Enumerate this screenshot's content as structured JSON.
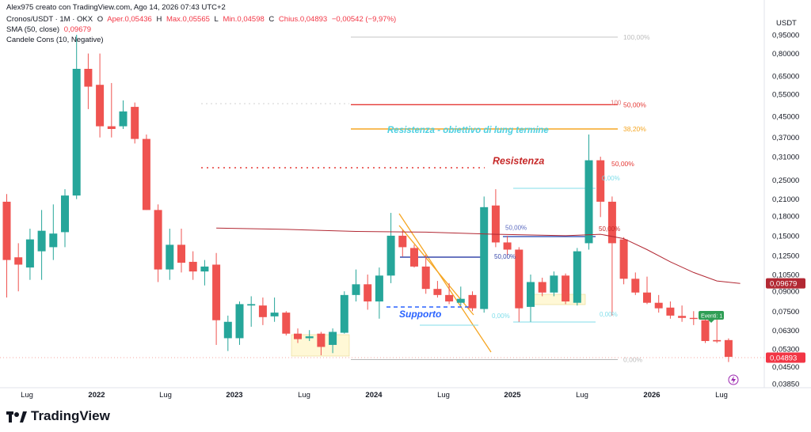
{
  "header": {
    "author_line": "Alex975 creato con TradingView.com, Ago 14, 2026 07:43 UTC+2",
    "symbol": "Cronos/USDT · 1M · OKX",
    "open_label": "O",
    "open_value": "Aper.0,05436",
    "high_label": "H",
    "high_value": "Max.0,05565",
    "low_label": "L",
    "low_value": "Min.0,04598",
    "close_label": "C",
    "close_value": "Chius.0,04893",
    "change_value": "−0,00542 (−9,97%)",
    "sma_label": "SMA (50, close)",
    "sma_value": "0,09679",
    "candle_indicator": "Candele Cons (10, Negative)"
  },
  "currency": "USDT",
  "logo_text": "TradingView",
  "colors": {
    "up": "#26a69a",
    "down": "#ef5350",
    "sma": "#b22833",
    "resistance_text": "#c62828",
    "long_term_text": "#4dd0e1",
    "support_text": "#2962ff",
    "fib_orange": "#f5a623",
    "fib_red": "#e53935"
  },
  "chart_data": {
    "type": "candlestick",
    "timeframe": "1M",
    "y_scale": "log",
    "y_ticks": [
      "0,95000",
      "0,80000",
      "0,65000",
      "0,55000",
      "0,45000",
      "0,37000",
      "0,31000",
      "0,25000",
      "0,21000",
      "0,18000",
      "0,15000",
      "0,12500",
      "0,10500",
      "0,09000",
      "0,07500",
      "0,06300",
      "0,05300",
      "0,04500",
      "0,03850"
    ],
    "x_labels": [
      "Lug",
      "2022",
      "Lug",
      "2023",
      "Lug",
      "2024",
      "Lug",
      "2025",
      "Lug",
      "2026",
      "Lug"
    ],
    "candles": [
      {
        "x": 0,
        "o": 0.205,
        "h": 0.22,
        "l": 0.085,
        "c": 0.12
      },
      {
        "x": 1,
        "o": 0.123,
        "h": 0.14,
        "l": 0.09,
        "c": 0.115
      },
      {
        "x": 2,
        "o": 0.112,
        "h": 0.16,
        "l": 0.1,
        "c": 0.145
      },
      {
        "x": 3,
        "o": 0.13,
        "h": 0.19,
        "l": 0.1,
        "c": 0.157
      },
      {
        "x": 4,
        "o": 0.135,
        "h": 0.2,
        "l": 0.12,
        "c": 0.153
      },
      {
        "x": 5,
        "o": 0.155,
        "h": 0.23,
        "l": 0.135,
        "c": 0.217
      },
      {
        "x": 6,
        "o": 0.217,
        "h": 0.95,
        "l": 0.21,
        "c": 0.695
      },
      {
        "x": 7,
        "o": 0.695,
        "h": 0.8,
        "l": 0.48,
        "c": 0.59
      },
      {
        "x": 8,
        "o": 0.6,
        "h": 0.8,
        "l": 0.37,
        "c": 0.41
      },
      {
        "x": 9,
        "o": 0.41,
        "h": 0.61,
        "l": 0.37,
        "c": 0.4
      },
      {
        "x": 10,
        "o": 0.41,
        "h": 0.52,
        "l": 0.4,
        "c": 0.47
      },
      {
        "x": 11,
        "o": 0.49,
        "h": 0.51,
        "l": 0.35,
        "c": 0.365
      },
      {
        "x": 12,
        "o": 0.365,
        "h": 0.38,
        "l": 0.19,
        "c": 0.19
      },
      {
        "x": 13,
        "o": 0.19,
        "h": 0.2,
        "l": 0.098,
        "c": 0.11
      },
      {
        "x": 14,
        "o": 0.11,
        "h": 0.16,
        "l": 0.1,
        "c": 0.138
      },
      {
        "x": 15,
        "o": 0.138,
        "h": 0.16,
        "l": 0.107,
        "c": 0.117
      },
      {
        "x": 16,
        "o": 0.118,
        "h": 0.13,
        "l": 0.1,
        "c": 0.108
      },
      {
        "x": 17,
        "o": 0.108,
        "h": 0.12,
        "l": 0.095,
        "c": 0.113
      },
      {
        "x": 18,
        "o": 0.115,
        "h": 0.128,
        "l": 0.055,
        "c": 0.069
      },
      {
        "x": 19,
        "o": 0.0585,
        "h": 0.072,
        "l": 0.052,
        "c": 0.068
      },
      {
        "x": 20,
        "o": 0.0585,
        "h": 0.082,
        "l": 0.055,
        "c": 0.08
      },
      {
        "x": 21,
        "o": 0.079,
        "h": 0.086,
        "l": 0.065,
        "c": 0.08
      },
      {
        "x": 22,
        "o": 0.079,
        "h": 0.085,
        "l": 0.066,
        "c": 0.071
      },
      {
        "x": 23,
        "o": 0.0715,
        "h": 0.085,
        "l": 0.068,
        "c": 0.074
      },
      {
        "x": 24,
        "o": 0.074,
        "h": 0.075,
        "l": 0.06,
        "c": 0.061
      },
      {
        "x": 25,
        "o": 0.061,
        "h": 0.064,
        "l": 0.056,
        "c": 0.058
      },
      {
        "x": 26,
        "o": 0.0585,
        "h": 0.063,
        "l": 0.057,
        "c": 0.0595
      },
      {
        "x": 27,
        "o": 0.061,
        "h": 0.062,
        "l": 0.05,
        "c": 0.054
      },
      {
        "x": 28,
        "o": 0.055,
        "h": 0.064,
        "l": 0.051,
        "c": 0.062
      },
      {
        "x": 29,
        "o": 0.0615,
        "h": 0.09,
        "l": 0.061,
        "c": 0.087
      },
      {
        "x": 30,
        "o": 0.087,
        "h": 0.11,
        "l": 0.082,
        "c": 0.096
      },
      {
        "x": 31,
        "o": 0.096,
        "h": 0.105,
        "l": 0.076,
        "c": 0.082
      },
      {
        "x": 32,
        "o": 0.082,
        "h": 0.112,
        "l": 0.07,
        "c": 0.104
      },
      {
        "x": 33,
        "o": 0.104,
        "h": 0.185,
        "l": 0.097,
        "c": 0.15
      },
      {
        "x": 34,
        "o": 0.15,
        "h": 0.158,
        "l": 0.124,
        "c": 0.135
      },
      {
        "x": 35,
        "o": 0.134,
        "h": 0.138,
        "l": 0.112,
        "c": 0.113
      },
      {
        "x": 36,
        "o": 0.113,
        "h": 0.126,
        "l": 0.088,
        "c": 0.092
      },
      {
        "x": 37,
        "o": 0.092,
        "h": 0.099,
        "l": 0.085,
        "c": 0.087
      },
      {
        "x": 38,
        "o": 0.087,
        "h": 0.097,
        "l": 0.08,
        "c": 0.082
      },
      {
        "x": 39,
        "o": 0.081,
        "h": 0.094,
        "l": 0.079,
        "c": 0.084
      },
      {
        "x": 40,
        "o": 0.087,
        "h": 0.09,
        "l": 0.075,
        "c": 0.077
      },
      {
        "x": 41,
        "o": 0.0765,
        "h": 0.215,
        "l": 0.074,
        "c": 0.195
      },
      {
        "x": 42,
        "o": 0.198,
        "h": 0.23,
        "l": 0.135,
        "c": 0.141
      },
      {
        "x": 43,
        "o": 0.141,
        "h": 0.15,
        "l": 0.125,
        "c": 0.132
      },
      {
        "x": 44,
        "o": 0.132,
        "h": 0.135,
        "l": 0.068,
        "c": 0.077
      },
      {
        "x": 45,
        "o": 0.078,
        "h": 0.105,
        "l": 0.068,
        "c": 0.098
      },
      {
        "x": 46,
        "o": 0.098,
        "h": 0.102,
        "l": 0.086,
        "c": 0.089
      },
      {
        "x": 47,
        "o": 0.089,
        "h": 0.108,
        "l": 0.086,
        "c": 0.104
      },
      {
        "x": 48,
        "o": 0.104,
        "h": 0.106,
        "l": 0.08,
        "c": 0.082
      },
      {
        "x": 49,
        "o": 0.081,
        "h": 0.134,
        "l": 0.079,
        "c": 0.13
      },
      {
        "x": 50,
        "o": 0.14,
        "h": 0.38,
        "l": 0.132,
        "c": 0.3
      },
      {
        "x": 51,
        "o": 0.3,
        "h": 0.31,
        "l": 0.178,
        "c": 0.205
      },
      {
        "x": 52,
        "o": 0.205,
        "h": 0.215,
        "l": 0.072,
        "c": 0.14
      },
      {
        "x": 53,
        "o": 0.145,
        "h": 0.148,
        "l": 0.096,
        "c": 0.101
      },
      {
        "x": 54,
        "o": 0.101,
        "h": 0.107,
        "l": 0.087,
        "c": 0.089
      },
      {
        "x": 55,
        "o": 0.089,
        "h": 0.103,
        "l": 0.08,
        "c": 0.081
      },
      {
        "x": 56,
        "o": 0.081,
        "h": 0.087,
        "l": 0.074,
        "c": 0.077
      },
      {
        "x": 57,
        "o": 0.0775,
        "h": 0.082,
        "l": 0.07,
        "c": 0.072
      },
      {
        "x": 58,
        "o": 0.0718,
        "h": 0.079,
        "l": 0.068,
        "c": 0.0705
      },
      {
        "x": 59,
        "o": 0.0705,
        "h": 0.075,
        "l": 0.066,
        "c": 0.0698
      },
      {
        "x": 60,
        "o": 0.069,
        "h": 0.071,
        "l": 0.056,
        "c": 0.057
      },
      {
        "x": 61,
        "o": 0.0575,
        "h": 0.074,
        "l": 0.056,
        "c": 0.0568
      },
      {
        "x": 62,
        "o": 0.0575,
        "h": 0.0584,
        "l": 0.047,
        "c": 0.0493
      }
    ],
    "sma": [
      {
        "x": 18,
        "y": 0.161
      },
      {
        "x": 24,
        "y": 0.159
      },
      {
        "x": 30,
        "y": 0.156
      },
      {
        "x": 36,
        "y": 0.155
      },
      {
        "x": 42,
        "y": 0.152
      },
      {
        "x": 48,
        "y": 0.15
      },
      {
        "x": 51,
        "y": 0.152
      },
      {
        "x": 53,
        "y": 0.146
      },
      {
        "x": 55,
        "y": 0.132
      },
      {
        "x": 57,
        "y": 0.118
      },
      {
        "x": 59,
        "y": 0.107
      },
      {
        "x": 61,
        "y": 0.099
      },
      {
        "x": 63,
        "y": 0.0968
      }
    ],
    "fib_levels": [
      {
        "label": "100,00%",
        "y": 0.93
      },
      {
        "label": "50,00%",
        "y": 0.5
      },
      {
        "label": "38,20%",
        "y": 0.4
      },
      {
        "label": "50,00%",
        "y": 0.29
      },
      {
        "label": "0,00%",
        "y": 0.048
      }
    ],
    "small_labels": [
      {
        "text": "100",
        "y": 0.51
      },
      {
        "text": "0,00%",
        "y": 0.255
      },
      {
        "text": "50,00%",
        "y": 0.162
      },
      {
        "text": "50,00%",
        "y": 0.124
      },
      {
        "text": "50,00%",
        "y": 0.16
      },
      {
        "text": "0,00%",
        "y": 0.072
      },
      {
        "text": "0,00%",
        "y": 0.073
      }
    ],
    "annotations": [
      {
        "text": "Resistenza",
        "y": 0.285
      },
      {
        "text": "Resistenza - obiettivo di lung termine",
        "y": 0.38
      },
      {
        "text": "Supporto",
        "y": 0.073
      }
    ],
    "event_label": "Eventi: 1",
    "last_price": {
      "label": "0,04893",
      "value": 0.04893
    },
    "sma_price": {
      "label": "0,09679",
      "value": 0.09679
    }
  }
}
